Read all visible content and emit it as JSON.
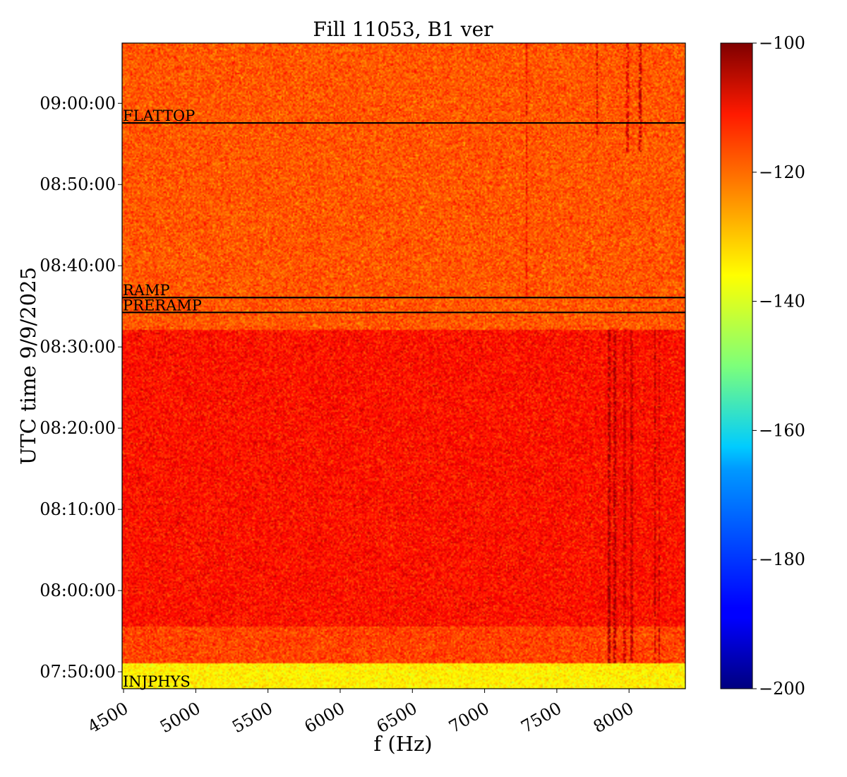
{
  "chart_data": {
    "type": "heatmap",
    "title": "Fill 11053, B1 ver",
    "xlabel": "f (Hz)",
    "ylabel": "UTC time 9/9/2025",
    "xlim": [
      4490,
      8390
    ],
    "x_ticks": [
      4500,
      5000,
      5500,
      6000,
      6500,
      7000,
      7500,
      8000
    ],
    "x_tick_labels": [
      "4500",
      "5000",
      "5500",
      "6000",
      "6500",
      "7000",
      "7500",
      "8000"
    ],
    "ylim": [
      "07:47:55",
      "09:07:25"
    ],
    "y_ticks": [
      {
        "time": "07:50:00",
        "label": "07:50:00"
      },
      {
        "time": "08:00:00",
        "label": "08:00:00"
      },
      {
        "time": "08:10:00",
        "label": "08:10:00"
      },
      {
        "time": "08:20:00",
        "label": "08:20:00"
      },
      {
        "time": "08:30:00",
        "label": "08:30:00"
      },
      {
        "time": "08:40:00",
        "label": "08:40:00"
      },
      {
        "time": "08:50:00",
        "label": "08:50:00"
      },
      {
        "time": "09:00:00",
        "label": "09:00:00"
      }
    ],
    "colorbar": {
      "cmap": "jet",
      "range": [
        -200,
        -100
      ],
      "ticks": [
        -100,
        -120,
        -140,
        -160,
        -180,
        -200
      ],
      "tick_labels": [
        "−100",
        "−120",
        "−140",
        "−160",
        "−180",
        "−200"
      ]
    },
    "phases": [
      {
        "label": "INJPHYS",
        "time": "07:47:55"
      },
      {
        "label": "PRERAMP",
        "time": "08:34:15"
      },
      {
        "label": "RAMP",
        "time": "08:36:05"
      },
      {
        "label": "FLATTOP",
        "time": "08:57:35"
      }
    ],
    "regions": [
      {
        "from": "07:47:55",
        "to": "07:51:00",
        "mean_db": -136
      },
      {
        "from": "07:51:00",
        "to": "07:55:30",
        "mean_db": -119
      },
      {
        "from": "07:55:30",
        "to": "08:32:10",
        "mean_db": -114
      },
      {
        "from": "08:32:10",
        "to": "09:07:25",
        "mean_db": -121
      }
    ],
    "lines": [
      {
        "f": 7290,
        "from": "08:36:05",
        "to": "09:07:25",
        "db": -112
      },
      {
        "f": 7780,
        "from": "08:56:00",
        "to": "09:07:25",
        "db": -108
      },
      {
        "f": 7990,
        "from": "08:54:00",
        "to": "09:07:25",
        "db": -109
      },
      {
        "f": 8080,
        "from": "08:54:00",
        "to": "09:07:25",
        "db": -107
      },
      {
        "f": 7860,
        "from": "07:51:00",
        "to": "08:32:10",
        "db": -104
      },
      {
        "f": 7900,
        "from": "07:51:00",
        "to": "08:32:10",
        "db": -105
      },
      {
        "f": 7970,
        "from": "07:51:00",
        "to": "08:32:10",
        "db": -108
      },
      {
        "f": 8020,
        "from": "07:51:00",
        "to": "08:32:10",
        "db": -107
      },
      {
        "f": 8180,
        "from": "07:51:00",
        "to": "08:32:10",
        "db": -106
      },
      {
        "f": 8210,
        "from": "07:51:00",
        "to": "08:32:10",
        "db": -108
      }
    ]
  }
}
